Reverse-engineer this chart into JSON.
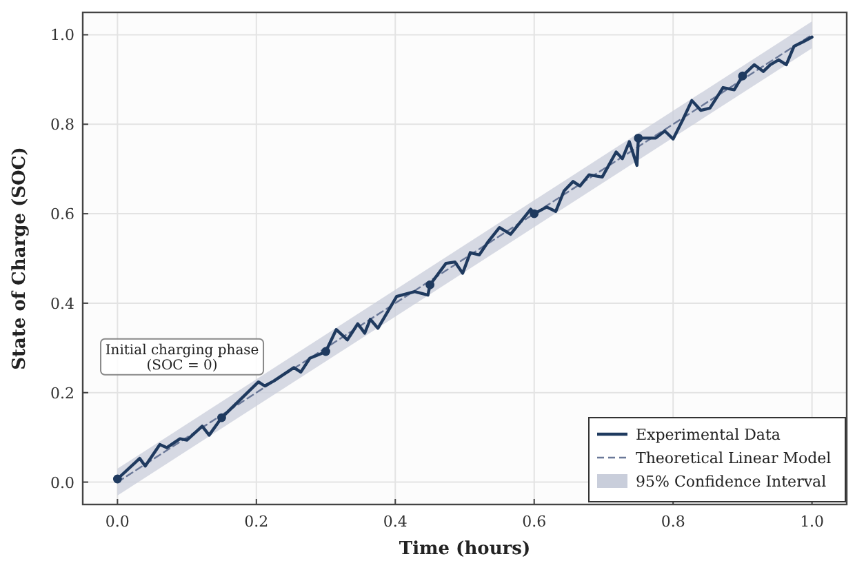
{
  "chart_data": {
    "type": "line",
    "xlabel": "Time (hours)",
    "ylabel": "State of Charge (SOC)",
    "xlim": [
      -0.05,
      1.05
    ],
    "ylim": [
      -0.05,
      1.05
    ],
    "xticks": [
      {
        "value": 0,
        "label": "0.0"
      },
      {
        "value": 0.2,
        "label": "0.2"
      },
      {
        "value": 0.4,
        "label": "0.4"
      },
      {
        "value": 0.6,
        "label": "0.6"
      },
      {
        "value": 0.8,
        "label": "0.8"
      },
      {
        "value": 1,
        "label": "1.0"
      }
    ],
    "yticks": [
      {
        "value": 0,
        "label": "0.0"
      },
      {
        "value": 0.2,
        "label": "0.2"
      },
      {
        "value": 0.4,
        "label": "0.4"
      },
      {
        "value": 0.6,
        "label": "0.6"
      },
      {
        "value": 0.8,
        "label": "0.8"
      },
      {
        "value": 1,
        "label": "1.0"
      }
    ],
    "grid": true,
    "legend": "bottom right",
    "annotations": [
      "Initial charging phase\n(SOC = 0)"
    ],
    "series": [
      {
        "type": "line",
        "name": "95% Confidence Interval",
        "color": "#c9cedb",
        "x": [
          0,
          1
        ],
        "values": [
          null,
          null
        ],
        "lower": [
          -0.03,
          0.97
        ],
        "upper": [
          0.03,
          1.03
        ]
      },
      {
        "type": "line",
        "name": "Theoretical Linear Model",
        "color": "#6a7898",
        "line_style": "dashed",
        "marker": "none",
        "x": [
          0,
          1
        ],
        "values": [
          0,
          1
        ]
      },
      {
        "type": "line",
        "name": "Experimental Data",
        "color": "#1f3a5f",
        "line_style": "solid",
        "marker": "none",
        "x": [
          0,
          0.032,
          0.04,
          0.061,
          0.071,
          0.09,
          0.1,
          0.122,
          0.132,
          0.15,
          0.203,
          0.212,
          0.225,
          0.254,
          0.264,
          0.277,
          0.293,
          0.3,
          0.315,
          0.331,
          0.346,
          0.356,
          0.364,
          0.375,
          0.402,
          0.428,
          0.447,
          0.45,
          0.473,
          0.486,
          0.497,
          0.508,
          0.521,
          0.534,
          0.55,
          0.566,
          0.579,
          0.595,
          0.6,
          0.618,
          0.631,
          0.643,
          0.656,
          0.666,
          0.679,
          0.698,
          0.718,
          0.727,
          0.737,
          0.748,
          0.75,
          0.775,
          0.788,
          0.8,
          0.814,
          0.827,
          0.84,
          0.853,
          0.872,
          0.888,
          0.9,
          0.917,
          0.93,
          0.94,
          0.952,
          0.963,
          0.974,
          0.988,
          1.0
        ],
        "values": [
          0.007,
          0.053,
          0.036,
          0.084,
          0.077,
          0.097,
          0.094,
          0.125,
          0.105,
          0.144,
          0.224,
          0.215,
          0.226,
          0.256,
          0.246,
          0.277,
          0.287,
          0.292,
          0.341,
          0.318,
          0.354,
          0.333,
          0.364,
          0.344,
          0.415,
          0.426,
          0.418,
          0.441,
          0.489,
          0.492,
          0.467,
          0.513,
          0.508,
          0.538,
          0.569,
          0.554,
          0.579,
          0.61,
          0.6,
          0.615,
          0.605,
          0.651,
          0.672,
          0.662,
          0.687,
          0.682,
          0.738,
          0.723,
          0.761,
          0.708,
          0.769,
          0.769,
          0.785,
          0.767,
          0.81,
          0.853,
          0.831,
          0.836,
          0.882,
          0.877,
          0.908,
          0.933,
          0.918,
          0.933,
          0.944,
          0.933,
          0.974,
          0.985,
          0.995
        ]
      },
      {
        "type": "scatter",
        "color": "#1f3a5f",
        "marker": "circle",
        "x": [
          0,
          0.15,
          0.3,
          0.45,
          0.6,
          0.75,
          0.9
        ],
        "values": [
          0.007,
          0.144,
          0.292,
          0.441,
          0.6,
          0.769,
          0.908
        ]
      }
    ]
  }
}
